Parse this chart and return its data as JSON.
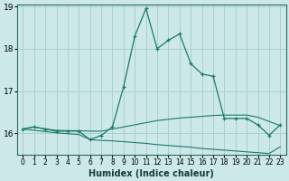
{
  "xlabel": "Humidex (Indice chaleur)",
  "ylabel": "",
  "bg_color": "#cce8e8",
  "grid_color": "#aad0d0",
  "line_color": "#1a7a6a",
  "x_values": [
    0,
    1,
    2,
    3,
    4,
    5,
    6,
    7,
    8,
    9,
    10,
    11,
    12,
    13,
    14,
    15,
    16,
    17,
    18,
    19,
    20,
    21,
    22,
    23
  ],
  "y_main": [
    16.1,
    16.15,
    16.1,
    16.05,
    16.05,
    16.05,
    15.85,
    15.95,
    16.15,
    17.1,
    18.3,
    18.95,
    18.0,
    18.2,
    18.35,
    17.65,
    17.4,
    17.35,
    16.35,
    16.35,
    16.35,
    16.2,
    15.95,
    16.2
  ],
  "y_upper": [
    16.1,
    16.15,
    16.1,
    16.07,
    16.06,
    16.06,
    16.05,
    16.05,
    16.1,
    16.15,
    16.2,
    16.25,
    16.3,
    16.33,
    16.36,
    16.38,
    16.4,
    16.42,
    16.43,
    16.43,
    16.43,
    16.38,
    16.28,
    16.18
  ],
  "y_lower": [
    16.1,
    16.07,
    16.04,
    16.01,
    15.99,
    15.97,
    15.85,
    15.83,
    15.82,
    15.8,
    15.78,
    15.76,
    15.73,
    15.71,
    15.69,
    15.67,
    15.64,
    15.62,
    15.6,
    15.58,
    15.56,
    15.54,
    15.52,
    15.68
  ],
  "ylim": [
    15.5,
    19.05
  ],
  "yticks": [
    16,
    17,
    18,
    19
  ],
  "xticks": [
    0,
    1,
    2,
    3,
    4,
    5,
    6,
    7,
    8,
    9,
    10,
    11,
    12,
    13,
    14,
    15,
    16,
    17,
    18,
    19,
    20,
    21,
    22,
    23
  ]
}
